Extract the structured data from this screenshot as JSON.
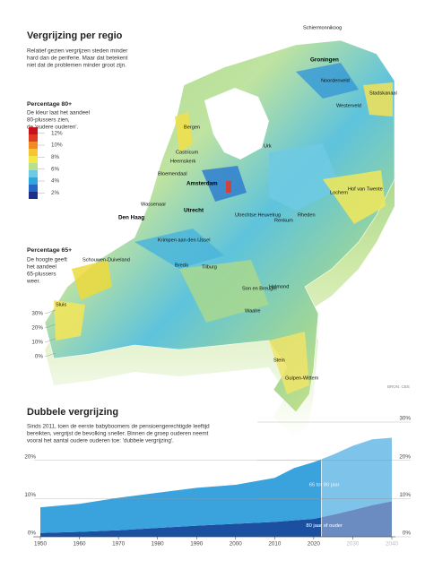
{
  "map": {
    "title": "Vergrijzing per regio",
    "intro": [
      "Relatief gezien vergrijzen steden minder",
      "hard dan de periferie. Maar dat betekent",
      "niet dat de problemen minder groot zijn."
    ],
    "color_legend": {
      "title": "Percentage 80+",
      "text": [
        "De kleur laat het aandeel",
        "80-plussers zien,",
        "de 'oudere ouderen'."
      ],
      "ticks": [
        {
          "value": 12,
          "label": "12%"
        },
        {
          "value": 10,
          "label": "10%"
        },
        {
          "value": 8,
          "label": "8%"
        },
        {
          "value": 6,
          "label": "6%"
        },
        {
          "value": 4,
          "label": "4%"
        },
        {
          "value": 2,
          "label": "2%"
        }
      ],
      "lim": [
        1,
        13
      ],
      "colors": [
        "#1e2f8a",
        "#2766c4",
        "#2fa7dc",
        "#6ccbe0",
        "#b7e08e",
        "#f2e64a",
        "#f6c333",
        "#ef8a25",
        "#e03a22",
        "#c8101e"
      ]
    },
    "height_legend": {
      "title": "Percentage 65+",
      "text": [
        "De hoogte geeft",
        "het aandeel",
        "65-plussers",
        "weer."
      ],
      "ticks": [
        {
          "value": 30,
          "label": "30%"
        },
        {
          "value": 20,
          "label": "20%"
        },
        {
          "value": 10,
          "label": "10%"
        },
        {
          "value": 0,
          "label": "0%"
        }
      ],
      "lim": [
        0,
        30
      ]
    },
    "places": [
      "Schiermonnikoog",
      "Groningen",
      "Noordenveld",
      "Stadskanaal",
      "Westerveld",
      "Bergen",
      "Castricum",
      "Heemskerk",
      "Bloemendaal",
      "Urk",
      "Amsterdam",
      "Wassenaar",
      "Den Haag",
      "Utrecht",
      "Lochem",
      "Hof van Twente",
      "Utrechtse Heuvelrug",
      "Renkum",
      "Rheden",
      "Krimpen aan den IJssel",
      "Schouwen-Duiveland",
      "Sluis",
      "Breda",
      "Tilburg",
      "Son en Breugel",
      "Helmond",
      "Waalre",
      "Stein",
      "Gulpen-Wittem"
    ],
    "source": "BRON: CBS"
  },
  "chart_data": {
    "type": "area",
    "title": "Dubbele vergrijzing",
    "text": [
      "Sinds 2011, toen de eerste babyboomers de pensioengerechtigde leeftijd",
      "bereikten, vergrijst de bevolking sneller. Binnen de groep ouderen neemt",
      "vooral het aantal oudere ouderen toe: 'dubbele vergrijzing'.",
      ""
    ],
    "x": [
      1950,
      1960,
      1970,
      1980,
      1990,
      2000,
      2010,
      2015,
      2020,
      2025,
      2030,
      2035,
      2040
    ],
    "series": [
      {
        "name": "80 jaar of ouder",
        "color": "#1b4fa0",
        "values": [
          1.0,
          1.3,
          1.7,
          2.3,
          2.9,
          3.4,
          3.9,
          4.3,
          4.7,
          5.8,
          7.0,
          8.3,
          9.3
        ]
      },
      {
        "name": "65 tot 80 jaar",
        "color": "#3aa3de",
        "values": [
          6.7,
          7.3,
          8.5,
          9.2,
          9.9,
          10.2,
          11.5,
          13.7,
          14.8,
          15.7,
          16.8,
          17.2,
          16.6
        ]
      }
    ],
    "stacked": true,
    "forecast_from": 2022,
    "xlim": [
      1950,
      2040
    ],
    "xticks": [
      1950,
      1960,
      1970,
      1980,
      1990,
      2000,
      2010,
      2020,
      2030,
      2040
    ],
    "ylim": [
      0,
      30
    ],
    "yticks": [
      {
        "value": 0,
        "label": "0%"
      },
      {
        "value": 10,
        "label": "10%"
      },
      {
        "value": 20,
        "label": "20%"
      }
    ],
    "y2lim": [
      0,
      30
    ],
    "y2ticks": [
      {
        "value": 0,
        "label": "0%"
      },
      {
        "value": 10,
        "label": "10%"
      },
      {
        "value": 20,
        "label": "20%"
      },
      {
        "value": 30,
        "label": "30%"
      }
    ],
    "grid": true
  }
}
